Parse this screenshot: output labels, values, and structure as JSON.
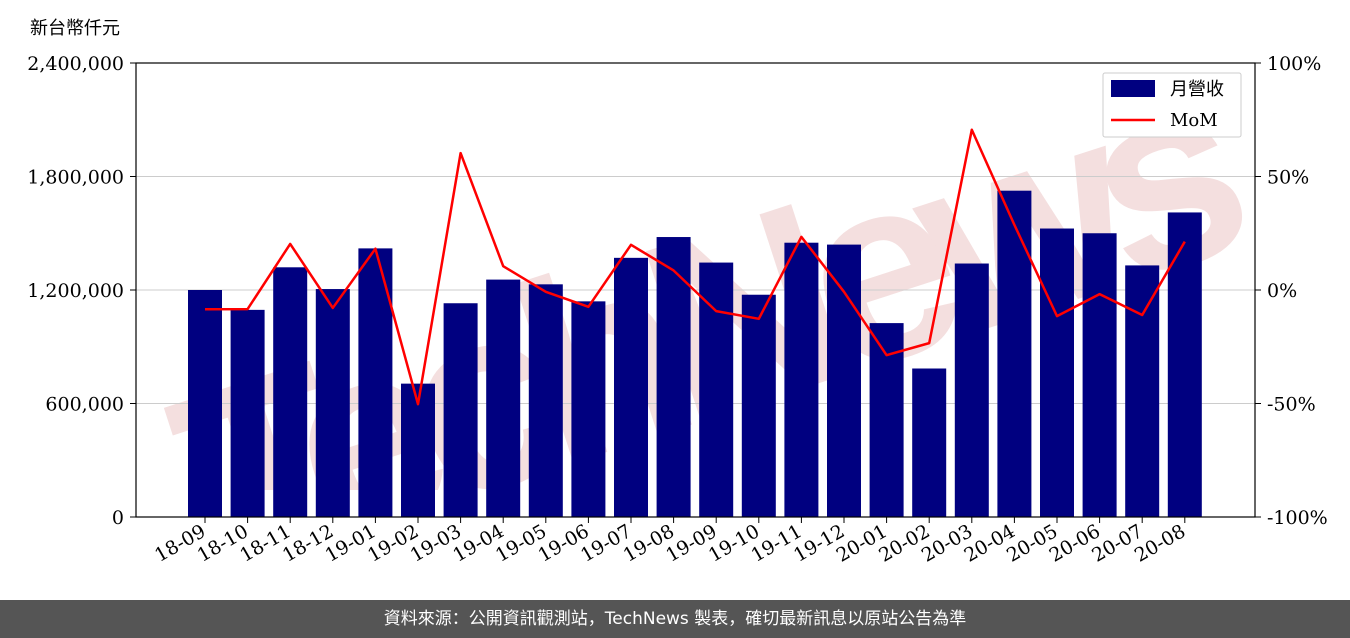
{
  "unit_label": "新台幣仟元",
  "footer": "資料來源：公開資訊觀測站，TechNews 製表，確切最新訊息以原站公告為準",
  "watermark": "TechNews",
  "colors": {
    "bar": "#000080",
    "line": "#ff0000",
    "grid": "#cccccc",
    "watermark": "#f2d6d6"
  },
  "chart_data": {
    "type": "bar",
    "categories": [
      "18-09",
      "18-10",
      "18-11",
      "18-12",
      "19-01",
      "19-02",
      "19-03",
      "19-04",
      "19-05",
      "19-06",
      "19-07",
      "19-08",
      "19-09",
      "19-10",
      "19-11",
      "19-12",
      "20-01",
      "20-02",
      "20-03",
      "20-04",
      "20-05",
      "20-06",
      "20-07",
      "20-08"
    ],
    "series": [
      {
        "name": "月營收",
        "type": "bar",
        "axis": "left",
        "values": [
          1200000,
          1095000,
          1320000,
          1205000,
          1420000,
          705000,
          1130000,
          1255000,
          1230000,
          1140000,
          1370000,
          1480000,
          1345000,
          1175000,
          1450000,
          1440000,
          1025000,
          785000,
          1340000,
          1725000,
          1525000,
          1500000,
          1330000,
          1610000
        ]
      },
      {
        "name": "MoM",
        "type": "line",
        "axis": "right",
        "values": [
          -8.5,
          -8.4,
          20.3,
          -7.9,
          18.2,
          -50.3,
          60.3,
          10.5,
          -0.8,
          -7.4,
          19.9,
          8.6,
          -9.3,
          -12.7,
          23.4,
          -0.8,
          -28.7,
          -23.4,
          70.6,
          28.7,
          -11.5,
          -1.8,
          -11.0,
          21.3
        ]
      }
    ],
    "y_left": {
      "min": 0,
      "max": 2400000,
      "ticks": [
        "0",
        "600,000",
        "1,200,000",
        "1,800,000",
        "2,400,000"
      ]
    },
    "y_right": {
      "min": -100,
      "max": 100,
      "ticks": [
        "-100%",
        "-50%",
        "0%",
        "50%",
        "100%"
      ]
    },
    "grid": true,
    "legend_position": "top-right"
  }
}
